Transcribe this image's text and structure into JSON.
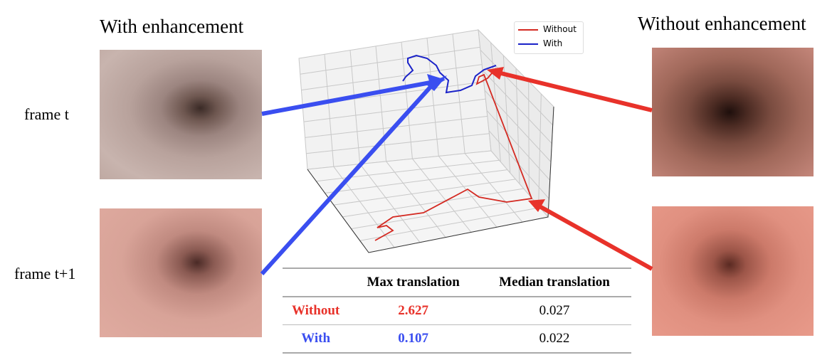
{
  "left_title": "With enhancement",
  "right_title": "Without enhancement",
  "row_labels": [
    "frame t",
    "frame t+1"
  ],
  "legend": {
    "without": "Without",
    "with": "With"
  },
  "colors": {
    "without": "#e8322a",
    "with": "#3a4ef0",
    "traj_without": "#d42a22",
    "traj_with": "#1a22c8"
  },
  "table": {
    "headers": [
      "",
      "Max translation",
      "Median translation"
    ],
    "rows": [
      {
        "label": "Without",
        "max": "2.627",
        "median": "0.027"
      },
      {
        "label": "With",
        "max": "0.107",
        "median": "0.022"
      }
    ]
  }
}
